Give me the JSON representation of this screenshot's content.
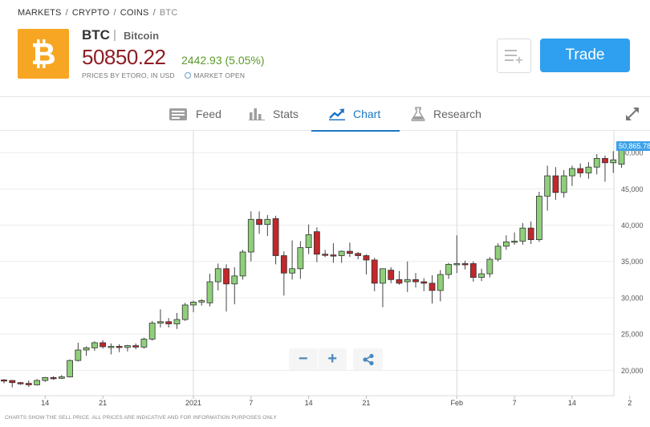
{
  "breadcrumb": {
    "items": [
      "MARKETS",
      "CRYPTO",
      "COINS"
    ],
    "current": "BTC",
    "separator": "/"
  },
  "instrument": {
    "symbol": "BTC",
    "separator": "|",
    "name": "Bitcoin",
    "logo_icon": "bitcoin-icon",
    "logo_color": "#f7a623",
    "price": "50850.22",
    "change": "2442.93 (5.05%)",
    "price_color": "#8e1e25",
    "change_color": "#5a9b2c",
    "source": "PRICES BY ETORO, IN USD",
    "market_status": "MARKET OPEN"
  },
  "actions": {
    "watchlist_icon": "add-to-watchlist-icon",
    "trade_label": "Trade",
    "trade_color": "#2fa0f0"
  },
  "tabs": [
    {
      "label": "Feed",
      "icon": "feed-icon",
      "active": false
    },
    {
      "label": "Stats",
      "icon": "stats-icon",
      "active": false
    },
    {
      "label": "Chart",
      "icon": "chart-icon",
      "active": true
    },
    {
      "label": "Research",
      "icon": "research-flask-icon",
      "active": false
    }
  ],
  "chart_controls": {
    "zoom_out": "−",
    "zoom_in": "+",
    "share_icon": "share-icon",
    "expand_icon": "expand-icon"
  },
  "chart_data": {
    "type": "candlestick",
    "y_ticks": [
      "20,000",
      "25,000",
      "30,000",
      "35,000",
      "40,000",
      "45,000",
      "50,000"
    ],
    "y_tick_values": [
      20000,
      25000,
      30000,
      35000,
      40000,
      45000,
      50000
    ],
    "ylim": [
      16500,
      53000
    ],
    "x_ticks": [
      {
        "label": "14",
        "index": 5
      },
      {
        "label": "21",
        "index": 12
      },
      {
        "label": "2021",
        "index": 23
      },
      {
        "label": "7",
        "index": 30
      },
      {
        "label": "14",
        "index": 37
      },
      {
        "label": "21",
        "index": 44
      },
      {
        "label": "Feb",
        "index": 55
      },
      {
        "label": "7",
        "index": 62
      },
      {
        "label": "14",
        "index": 69
      },
      {
        "label": "2",
        "index": 76
      }
    ],
    "year_markers": [
      "2021",
      "Feb"
    ],
    "last_price_label": "50,865.78",
    "last_price": 50865.78,
    "up_color": "#8fcf7a",
    "down_color": "#c0282c",
    "grid": true,
    "candles": [
      [
        18680,
        18780,
        18200,
        18600
      ],
      [
        18600,
        18650,
        17650,
        18300
      ],
      [
        18300,
        18400,
        18000,
        18200
      ],
      [
        18200,
        18600,
        17700,
        18000
      ],
      [
        18000,
        18800,
        17900,
        18600
      ],
      [
        18600,
        19100,
        18400,
        19000
      ],
      [
        19000,
        19200,
        18700,
        18900
      ],
      [
        18900,
        19350,
        18800,
        19100
      ],
      [
        19100,
        21500,
        19000,
        21350
      ],
      [
        21350,
        23800,
        21200,
        22800
      ],
      [
        22800,
        23300,
        22000,
        23100
      ],
      [
        23100,
        24000,
        22700,
        23800
      ],
      [
        23800,
        24150,
        23000,
        23250
      ],
      [
        23250,
        23700,
        22200,
        23300
      ],
      [
        23300,
        23600,
        22500,
        23150
      ],
      [
        23150,
        23500,
        22600,
        23400
      ],
      [
        23400,
        23700,
        22900,
        23200
      ],
      [
        23200,
        24500,
        23000,
        24300
      ],
      [
        24300,
        26800,
        24100,
        26500
      ],
      [
        26500,
        28400,
        25900,
        26700
      ],
      [
        26700,
        27200,
        25900,
        26400
      ],
      [
        26400,
        27900,
        25700,
        27000
      ],
      [
        27000,
        29300,
        26800,
        29000
      ],
      [
        29000,
        29600,
        28000,
        29400
      ],
      [
        29400,
        29800,
        28900,
        29600
      ],
      [
        29300,
        33300,
        28800,
        32200
      ],
      [
        32200,
        34700,
        31000,
        34000
      ],
      [
        34000,
        34600,
        28100,
        31900
      ],
      [
        31900,
        34200,
        29100,
        33000
      ],
      [
        33000,
        36600,
        32500,
        36300
      ],
      [
        36300,
        41900,
        35000,
        40800
      ],
      [
        40800,
        41900,
        38800,
        40100
      ],
      [
        40100,
        41400,
        38500,
        40800
      ],
      [
        40900,
        41300,
        34600,
        35800
      ],
      [
        35800,
        36400,
        30300,
        33400
      ],
      [
        33400,
        37900,
        32500,
        34000
      ],
      [
        34000,
        37800,
        32600,
        36900
      ],
      [
        36900,
        40100,
        36000,
        38700
      ],
      [
        39100,
        39700,
        34900,
        36000
      ],
      [
        36000,
        36600,
        35600,
        35900
      ],
      [
        35900,
        37500,
        34800,
        35800
      ],
      [
        35800,
        36500,
        34800,
        36400
      ],
      [
        36400,
        37600,
        35600,
        36100
      ],
      [
        36100,
        36300,
        35300,
        35800
      ],
      [
        35800,
        36000,
        33200,
        35200
      ],
      [
        35200,
        35500,
        30900,
        32000
      ],
      [
        32000,
        34000,
        28700,
        34000
      ],
      [
        33800,
        34200,
        32000,
        32500
      ],
      [
        32500,
        33700,
        31800,
        32000
      ],
      [
        32200,
        35000,
        30800,
        32500
      ],
      [
        32500,
        33400,
        31400,
        32200
      ],
      [
        32200,
        32700,
        30900,
        32000
      ],
      [
        32000,
        33100,
        29200,
        31000
      ],
      [
        31000,
        33800,
        29500,
        33200
      ],
      [
        33200,
        34800,
        32600,
        34600
      ],
      [
        34600,
        38600,
        33400,
        34700
      ],
      [
        34700,
        35100,
        33900,
        34600
      ],
      [
        34700,
        35000,
        32200,
        32800
      ],
      [
        32800,
        34000,
        32300,
        33300
      ],
      [
        33300,
        35600,
        32800,
        35300
      ],
      [
        35300,
        37500,
        35000,
        37100
      ],
      [
        37100,
        38600,
        36600,
        37700
      ],
      [
        37700,
        39000,
        37300,
        37800
      ],
      [
        37800,
        40300,
        37300,
        39600
      ],
      [
        39600,
        40500,
        37400,
        38000
      ],
      [
        38000,
        44600,
        37700,
        44000
      ],
      [
        44000,
        48200,
        42000,
        46800
      ],
      [
        46800,
        48000,
        43500,
        44500
      ],
      [
        44500,
        47600,
        43800,
        46800
      ],
      [
        46800,
        48200,
        45400,
        47800
      ],
      [
        47800,
        48500,
        46600,
        47200
      ],
      [
        47200,
        48700,
        46400,
        48000
      ],
      [
        48000,
        49800,
        47000,
        49200
      ],
      [
        49200,
        49600,
        46000,
        48600
      ],
      [
        48600,
        50200,
        47200,
        49000
      ],
      [
        48400,
        51300,
        47900,
        50865
      ]
    ]
  },
  "disclaimer": "CHARTS SHOW THE SELL PRICE. ALL PRICES ARE INDICATIVE AND FOR INFORMATION PURPOSES ONLY"
}
